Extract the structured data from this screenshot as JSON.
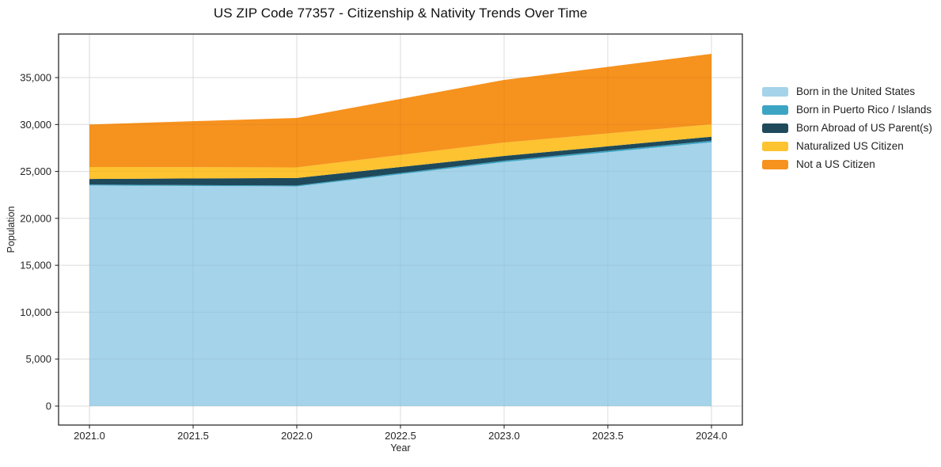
{
  "chart_data": {
    "type": "area",
    "stacked": true,
    "title": "US ZIP Code 77357 - Citizenship & Nativity Trends Over Time",
    "xlabel": "Year",
    "ylabel": "Population",
    "x": [
      2021,
      2022,
      2023,
      2024
    ],
    "series": [
      {
        "name": "Born in the United States",
        "color": "#a5d3e9",
        "values": [
          23500,
          23400,
          26000,
          28100
        ]
      },
      {
        "name": "Born in Puerto Rico / Islands",
        "color": "#3da5c4",
        "values": [
          100,
          100,
          150,
          170
        ]
      },
      {
        "name": "Born Abroad of US Parent(s)",
        "color": "#1f4a5c",
        "values": [
          600,
          800,
          500,
          430
        ]
      },
      {
        "name": "Naturalized US Citizen",
        "color": "#fdc330",
        "values": [
          1270,
          1130,
          1430,
          1320
        ]
      },
      {
        "name": "Not a US Citizen",
        "color": "#f6921e",
        "values": [
          4530,
          5270,
          6670,
          7510
        ]
      }
    ],
    "totals": [
      30000,
      30700,
      34750,
      37530
    ],
    "x_ticks": [
      "2021.0",
      "2021.5",
      "2022.0",
      "2022.5",
      "2023.0",
      "2023.5",
      "2024.0"
    ],
    "x_tick_values": [
      2021,
      2021.5,
      2022,
      2022.5,
      2023,
      2023.5,
      2024
    ],
    "y_ticks": [
      "0",
      "5,000",
      "10,000",
      "15,000",
      "20,000",
      "25,000",
      "30,000",
      "35,000"
    ],
    "y_tick_values": [
      0,
      5000,
      10000,
      15000,
      20000,
      25000,
      30000,
      35000
    ],
    "xlim": [
      2020.851,
      2024.149
    ],
    "ylim": [
      -2024,
      39640
    ],
    "grid": true,
    "legend_position": "right-outside"
  }
}
